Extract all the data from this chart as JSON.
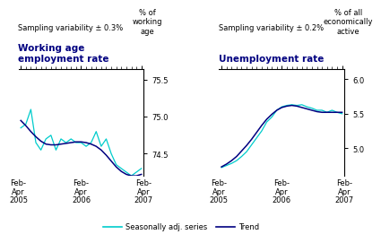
{
  "left_title": "Working age\nemployment rate",
  "left_subtitle": "Sampling variability ± 0.3%",
  "left_ylabel": "% of\nworking\nage",
  "left_ylim": [
    74.2,
    75.65
  ],
  "left_yticks": [
    74.5,
    75.0,
    75.5
  ],
  "right_title": "Unemployment rate",
  "right_subtitle": "Sampling variability ± 0.2%",
  "right_ylabel": "% of all\neconomically\nactive",
  "right_ylim": [
    4.6,
    6.15
  ],
  "right_yticks": [
    5.0,
    5.5,
    6.0
  ],
  "xtick_labels": [
    "Feb-\nApr\n2005",
    "Feb-\nApr\n2006",
    "Feb-\nApr\n2007"
  ],
  "left_seasonal": [
    74.85,
    74.9,
    75.1,
    74.65,
    74.55,
    74.7,
    74.75,
    74.55,
    74.7,
    74.65,
    74.7,
    74.65,
    74.65,
    74.6,
    74.65,
    74.8,
    74.6,
    74.7,
    74.5,
    74.35,
    74.3,
    74.25,
    74.2,
    74.25,
    74.3
  ],
  "left_trend": [
    74.95,
    74.88,
    74.8,
    74.73,
    74.67,
    74.63,
    74.62,
    74.62,
    74.63,
    74.64,
    74.65,
    74.66,
    74.66,
    74.65,
    74.63,
    74.6,
    74.55,
    74.48,
    74.4,
    74.32,
    74.26,
    74.22,
    74.2,
    74.2,
    74.22
  ],
  "right_seasonal": [
    4.72,
    4.75,
    4.78,
    4.82,
    4.88,
    4.95,
    5.05,
    5.15,
    5.25,
    5.38,
    5.45,
    5.55,
    5.6,
    5.62,
    5.63,
    5.62,
    5.63,
    5.6,
    5.58,
    5.55,
    5.55,
    5.52,
    5.55,
    5.52,
    5.5
  ],
  "right_trend": [
    4.73,
    4.77,
    4.82,
    4.88,
    4.96,
    5.04,
    5.13,
    5.23,
    5.33,
    5.42,
    5.49,
    5.55,
    5.59,
    5.61,
    5.62,
    5.61,
    5.59,
    5.57,
    5.55,
    5.53,
    5.52,
    5.52,
    5.52,
    5.52,
    5.52
  ],
  "color_seasonal": "#00cccc",
  "color_trend": "#000080",
  "legend_seasonal": "Seasonally adj. series",
  "legend_trend": "Trend",
  "background": "#ffffff",
  "n_minor_ticks": 25,
  "left_title_color": "#000080",
  "subtitle_color": "#000000"
}
